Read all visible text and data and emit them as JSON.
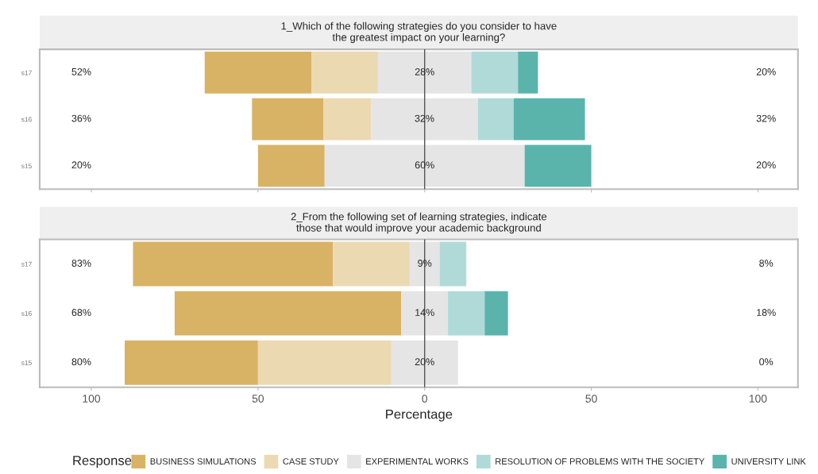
{
  "chart_data": [
    {
      "type": "bar",
      "orientation": "horizontal",
      "title": "1_Which of the following strategies do you consider to have\nthe greatest impact on your learning?",
      "categories": [
        "s17",
        "s16",
        "s15"
      ],
      "series": [
        {
          "color": "#d8b365",
          "base": [
            -66,
            -51.8,
            -50
          ],
          "values": [
            32,
            21.4,
            20
          ]
        },
        {
          "color": "#ebd9b2",
          "base": [
            -34,
            -30.4,
            null
          ],
          "values": [
            20,
            14.3,
            null
          ]
        },
        {
          "color": "#e5e5e5",
          "base": [
            -14,
            -16.1,
            -30
          ],
          "values": [
            28,
            32.1,
            60
          ],
          "value_labels": [
            "28%",
            "32%",
            "60%"
          ]
        },
        {
          "color": "#afdad8",
          "base": [
            14,
            16,
            null
          ],
          "values": [
            14,
            10.7,
            null
          ]
        },
        {
          "color": "#5ab4ac",
          "base": [
            28,
            26.7,
            30
          ],
          "values": [
            6,
            21.4,
            20
          ]
        }
      ],
      "xlim": [
        -115.5,
        112
      ],
      "xticks": [
        {
          "value": -100,
          "label": null
        },
        {
          "value": -50,
          "label": null
        },
        {
          "value": 0,
          "label": null
        },
        {
          "value": 50,
          "label": null
        },
        {
          "value": 100,
          "label": null
        }
      ],
      "tick_labels": "y",
      "grid": false,
      "legend": false,
      "ref_lines": [
        {
          "axis": "x",
          "value": 0,
          "color": "#555555"
        }
      ],
      "annotations": [
        "52%",
        "36%",
        "20%",
        "20%",
        "32%",
        "20%"
      ]
    },
    {
      "type": "bar",
      "orientation": "horizontal",
      "title": "2_From the following set of learning strategies, indicate\nthose that would improve your academic background",
      "xlabel": "Percentage",
      "legend_title": "Response",
      "categories": [
        "s17",
        "s16",
        "s15"
      ],
      "series": [
        {
          "name": "BUSINESS SIMULATIONS",
          "color": "#d8b365",
          "base": [
            -87.5,
            -75,
            -90
          ],
          "values": [
            60,
            68,
            40
          ]
        },
        {
          "name": "CASE STUDY",
          "color": "#ebd9b2",
          "base": [
            -27.5,
            null,
            -50
          ],
          "values": [
            23,
            null,
            40
          ]
        },
        {
          "name": "EXPERIMENTAL WORKS",
          "color": "#e5e5e5",
          "base": [
            -4.5,
            -7,
            -10
          ],
          "values": [
            9,
            14,
            20
          ],
          "value_labels": [
            "9%",
            "14%",
            "20%"
          ]
        },
        {
          "name": "RESOLUTION OF PROBLEMS WITH THE SOCIETY",
          "color": "#afdad8",
          "base": [
            4.5,
            7,
            null
          ],
          "values": [
            8,
            11,
            null
          ]
        },
        {
          "name": "UNIVERSITY LINK",
          "color": "#5ab4ac",
          "base": [
            null,
            18,
            null
          ],
          "values": [
            null,
            7,
            null
          ]
        }
      ],
      "xlim": [
        -115.5,
        112
      ],
      "xticks": [
        {
          "value": -100,
          "label": "100"
        },
        {
          "value": -50,
          "label": "50"
        },
        0,
        50,
        100
      ],
      "grid": false,
      "legend": "bottom",
      "ref_lines": [
        {
          "axis": "x",
          "value": 0,
          "color": "#555555"
        }
      ],
      "annotations": [
        "83%",
        "68%",
        "80%",
        "8%",
        "18%",
        "0%"
      ]
    }
  ]
}
